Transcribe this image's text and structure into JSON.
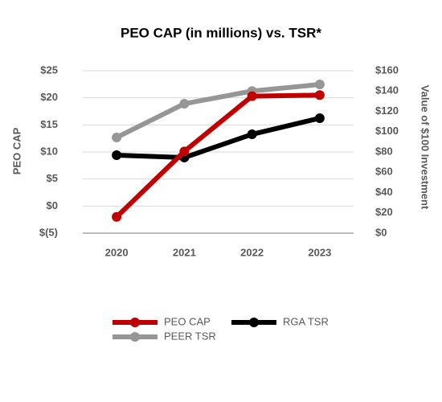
{
  "chart_data": {
    "type": "line",
    "title": "PEO CAP (in millions) vs. TSR*",
    "y_label": "PEO CAP",
    "y2_label": "Value of $100 Investment",
    "categories": [
      "2020",
      "2021",
      "2022",
      "2023"
    ],
    "ylim": [
      -5,
      25
    ],
    "yticks": [
      {
        "value": -5,
        "label": "$(5)"
      },
      {
        "value": 0,
        "label": "$0"
      },
      {
        "value": 5,
        "label": "$5"
      },
      {
        "value": 10,
        "label": "$10"
      },
      {
        "value": 15,
        "label": "$15"
      },
      {
        "value": 20,
        "label": "$20"
      },
      {
        "value": 25,
        "label": "$25"
      }
    ],
    "y2lim": [
      0,
      160
    ],
    "y2ticks": [
      {
        "value": 0,
        "label": "$0"
      },
      {
        "value": 20,
        "label": "$20"
      },
      {
        "value": 40,
        "label": "$40"
      },
      {
        "value": 60,
        "label": "$60"
      },
      {
        "value": 80,
        "label": "$80"
      },
      {
        "value": 100,
        "label": "$100"
      },
      {
        "value": 120,
        "label": "$120"
      },
      {
        "value": 140,
        "label": "$140"
      },
      {
        "value": 160,
        "label": "$160"
      }
    ],
    "grid": true,
    "series": [
      {
        "name": "PEO CAP",
        "color": "#c00000",
        "values": [
          -2,
          10.1,
          20.3,
          20.5
        ]
      },
      {
        "name": "RGA TSR",
        "color": "#000000",
        "axis": "y2",
        "values": [
          76.8,
          74.5,
          97.4,
          113.3
        ]
      },
      {
        "name": "PEER TSR",
        "color": "#969696",
        "axis": "y2",
        "values": [
          94.3,
          127.5,
          140,
          146.5
        ]
      }
    ]
  }
}
